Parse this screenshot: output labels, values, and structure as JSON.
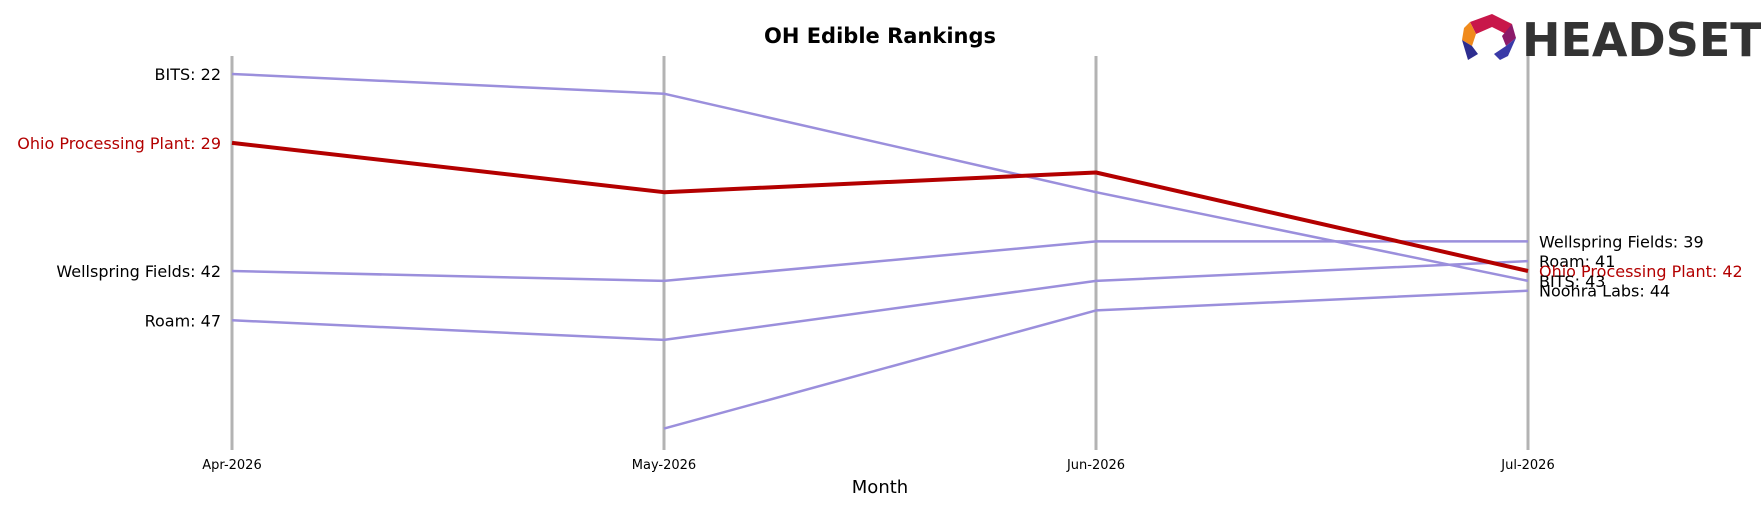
{
  "chart_data": {
    "type": "line",
    "title": "OH Edible Rankings",
    "xlabel": "Month",
    "ylabel": "",
    "categories": [
      "Apr-2026",
      "May-2026",
      "Jun-2026",
      "Jul-2026"
    ],
    "y_inverted": true,
    "ylim": [
      60,
      20
    ],
    "grid": false,
    "series": [
      {
        "name": "BITS",
        "values": [
          22,
          24,
          34,
          43
        ],
        "highlight": false
      },
      {
        "name": "Ohio Processing Plant",
        "values": [
          29,
          34,
          32,
          42
        ],
        "highlight": true
      },
      {
        "name": "Wellspring Fields",
        "values": [
          42,
          43,
          39,
          39
        ],
        "highlight": false
      },
      {
        "name": "Roam",
        "values": [
          47,
          49,
          43,
          41
        ],
        "highlight": false
      },
      {
        "name": "Noohra Labs",
        "values": [
          null,
          58,
          46,
          44
        ],
        "highlight": false
      }
    ],
    "start_labels": [
      {
        "text": "BITS: 22",
        "value": 22,
        "highlight": false
      },
      {
        "text": "Ohio Processing Plant: 29",
        "value": 29,
        "highlight": true
      },
      {
        "text": "Wellspring Fields: 42",
        "value": 42,
        "highlight": false
      },
      {
        "text": "Roam: 47",
        "value": 47,
        "highlight": false
      }
    ],
    "end_labels": [
      {
        "text": "Wellspring Fields: 39",
        "value": 39,
        "highlight": false
      },
      {
        "text": "Roam: 41",
        "value": 41,
        "highlight": false
      },
      {
        "text": "Ohio Processing Plant: 42",
        "value": 42,
        "highlight": true
      },
      {
        "text": "BITS: 43",
        "value": 43,
        "highlight": false
      },
      {
        "text": "Noohra Labs: 44",
        "value": 44,
        "highlight": false
      }
    ]
  },
  "colors": {
    "series": "#9b8fdc",
    "highlight": "#b30000",
    "axis_line": "#b3b3b3",
    "logo_text": "#333333"
  },
  "logo": {
    "text": "HEADSET",
    "icon": "headset-hexagon-logo-icon"
  }
}
